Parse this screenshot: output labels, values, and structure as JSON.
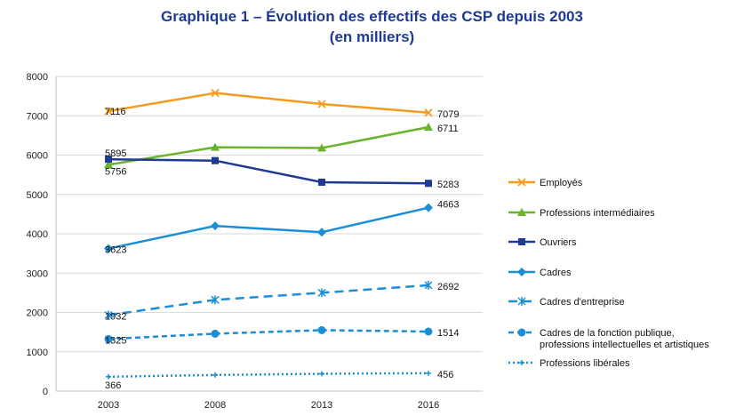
{
  "chart_data": {
    "type": "line",
    "title_line1": "Graphique 1 – Évolution des effectifs des CSP depuis 2003",
    "title_line2": "(en milliers)",
    "categories": [
      "2003",
      "2008",
      "2013",
      "2016"
    ],
    "ylim": [
      0,
      8000
    ],
    "yticks": [
      0,
      1000,
      2000,
      3000,
      4000,
      5000,
      6000,
      7000,
      8000
    ],
    "grid": true,
    "legend_position": "right",
    "series": [
      {
        "name": "Employés",
        "values": [
          7116,
          7580,
          7300,
          7079
        ],
        "labels": [
          "7116",
          "",
          "",
          "7079"
        ],
        "color": "#f39c1f",
        "dash": "",
        "marker": "x",
        "width": 2.5
      },
      {
        "name": "Professions intermédiaires",
        "values": [
          5756,
          6200,
          6180,
          6711
        ],
        "labels": [
          "5756",
          "",
          "",
          "6711"
        ],
        "color": "#6ab42d",
        "dash": "",
        "marker": "triangle",
        "width": 2.5
      },
      {
        "name": "Ouvriers",
        "values": [
          5895,
          5860,
          5310,
          5283
        ],
        "labels": [
          "5895",
          "",
          "",
          "5283"
        ],
        "color": "#1f3a93",
        "dash": "",
        "marker": "square",
        "width": 2.5
      },
      {
        "name": "Cadres",
        "values": [
          3623,
          4200,
          4040,
          4663
        ],
        "labels": [
          "3623",
          "",
          "",
          "4663"
        ],
        "color": "#1b8fd6",
        "dash": "",
        "marker": "diamond",
        "width": 2.5
      },
      {
        "name": "Cadres d'entreprise",
        "values": [
          1932,
          2320,
          2500,
          2692
        ],
        "labels": [
          "1932",
          "",
          "",
          "2692"
        ],
        "color": "#1b8fd6",
        "dash": "10,6",
        "marker": "star",
        "width": 2.5
      },
      {
        "name": "Cadres de la fonction publique,\nprofessions intellectuelles et artistiques",
        "values": [
          1325,
          1460,
          1550,
          1514
        ],
        "labels": [
          "1325",
          "",
          "",
          "1514"
        ],
        "color": "#1b8fd6",
        "dash": "6,4",
        "marker": "circle",
        "width": 2.5
      },
      {
        "name": "Professions libérales",
        "values": [
          366,
          410,
          440,
          456
        ],
        "labels": [
          "366",
          "",
          "",
          "456"
        ],
        "color": "#1b8fd6",
        "dash": "2,3",
        "marker": "plus",
        "width": 2.5
      }
    ]
  }
}
